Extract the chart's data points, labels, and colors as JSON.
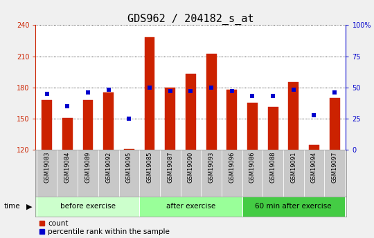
{
  "title": "GDS962 / 204182_s_at",
  "samples": [
    "GSM19083",
    "GSM19084",
    "GSM19089",
    "GSM19092",
    "GSM19095",
    "GSM19085",
    "GSM19087",
    "GSM19090",
    "GSM19093",
    "GSM19096",
    "GSM19086",
    "GSM19088",
    "GSM19091",
    "GSM19094",
    "GSM19097"
  ],
  "bar_values": [
    168,
    151,
    168,
    175,
    121,
    228,
    180,
    193,
    212,
    178,
    165,
    161,
    185,
    125,
    170
  ],
  "percentile_values": [
    45,
    35,
    46,
    48,
    25,
    50,
    47,
    47,
    50,
    47,
    43,
    43,
    48,
    28,
    46
  ],
  "bar_bottom": 120,
  "ylim_left": [
    120,
    240
  ],
  "ylim_right": [
    0,
    100
  ],
  "yticks_left": [
    120,
    150,
    180,
    210,
    240
  ],
  "yticks_right": [
    0,
    25,
    50,
    75,
    100
  ],
  "bar_color": "#cc2200",
  "percentile_color": "#0000cc",
  "gc_list": [
    {
      "label": "before exercise",
      "start": 0,
      "end": 4,
      "color": "#ccffcc"
    },
    {
      "label": "after exercise",
      "start": 5,
      "end": 9,
      "color": "#99ff99"
    },
    {
      "label": "60 min after exercise",
      "start": 10,
      "end": 14,
      "color": "#44cc44"
    }
  ],
  "fig_bg": "#f0f0f0",
  "plot_bg": "#ffffff",
  "xlabels_bg": "#c8c8c8",
  "bar_width": 0.5,
  "title_fontsize": 11,
  "tick_fontsize": 7,
  "sample_fontsize": 6,
  "group_fontsize": 7.5,
  "legend_fontsize": 7.5
}
